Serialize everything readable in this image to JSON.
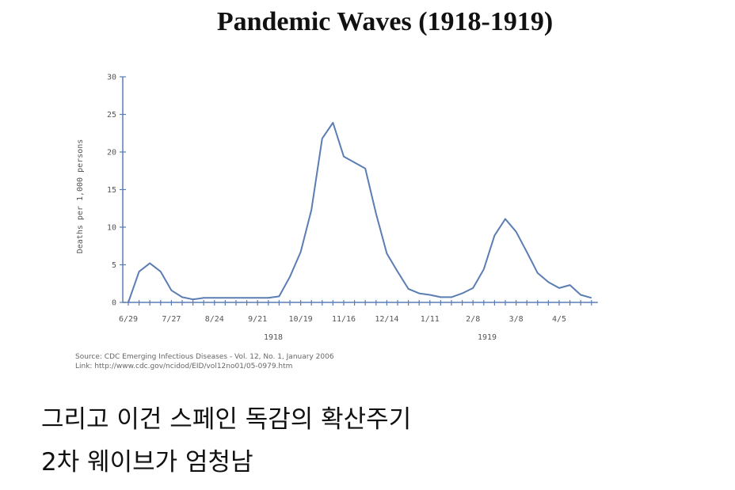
{
  "chart_data": {
    "type": "line",
    "title": "Pandemic Waves (1918-1919)",
    "y_label": "Deaths per 1,000 persons",
    "categories": [
      "6/29",
      null,
      null,
      null,
      "7/27",
      null,
      null,
      null,
      "8/24",
      null,
      null,
      null,
      "9/21",
      null,
      null,
      null,
      "10/19",
      null,
      null,
      null,
      "11/16",
      null,
      null,
      null,
      "12/14",
      null,
      null,
      null,
      "1/11",
      null,
      null,
      null,
      "2/8",
      null,
      null,
      null,
      "3/8",
      null,
      null,
      null,
      "4/5",
      null,
      null,
      null
    ],
    "group_labels": [
      "1918",
      "1919"
    ],
    "series": [
      {
        "name": "Deaths",
        "color": "#5a7db3",
        "values": [
          0,
          4.1,
          5.2,
          4.1,
          1.6,
          0.7,
          0.4,
          0.6,
          0.6,
          0.6,
          0.6,
          0.6,
          0.6,
          0.6,
          0.8,
          3.4,
          6.7,
          12.3,
          21.8,
          23.9,
          19.4,
          18.6,
          17.8,
          11.8,
          6.5,
          4.1,
          1.8,
          1.2,
          1.0,
          0.7,
          0.7,
          1.2,
          1.9,
          4.4,
          8.9,
          11.1,
          9.4,
          6.7,
          3.9,
          2.7,
          1.9,
          2.3,
          1.0,
          0.6
        ]
      }
    ],
    "ylim": [
      0,
      30
    ],
    "yticks": [
      0,
      5,
      10,
      15,
      20,
      25,
      30
    ],
    "source": [
      "Source: CDC Emerging Infectious Diseases - Vol. 12, No. 1, January 2006",
      "Link: http://www.cdc.gov/ncidod/EID/vol12no01/05-0979.htm"
    ]
  },
  "caption": [
    "그리고 이건 스페인 독감의 확산주기",
    "2차 웨이브가 엄청남"
  ]
}
